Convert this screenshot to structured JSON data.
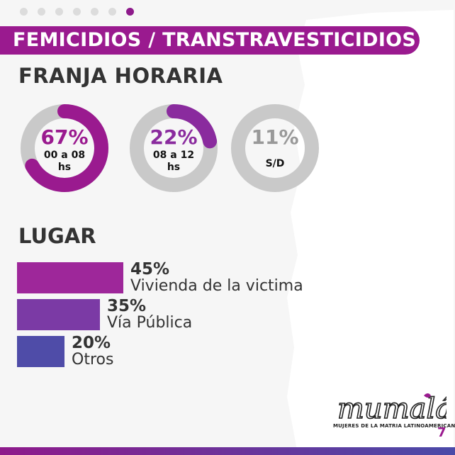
{
  "pagination": {
    "count": 7,
    "active_index": 6
  },
  "banner": {
    "title": "FEMICIDIOS / TRANSTRAVESTICIDIOS"
  },
  "franja": {
    "heading": "FRANJA HORARIA",
    "items": [
      {
        "percent_label": "67%",
        "value": 67,
        "label_lines": [
          "00 a 08",
          "hs"
        ],
        "color": "#9a1a8f"
      },
      {
        "percent_label": "22%",
        "value": 22,
        "label_lines": [
          "08 a 12",
          "hs"
        ],
        "color": "#8a2b9e"
      },
      {
        "percent_label": "11%",
        "value": 11,
        "label_lines": [
          "S/D"
        ],
        "color": "#bbbbbb"
      }
    ]
  },
  "lugar": {
    "heading": "LUGAR",
    "items": [
      {
        "percent_label": "45%",
        "value": 45,
        "name": "Vivienda de la victima",
        "color": "#9e279a"
      },
      {
        "percent_label": "35%",
        "value": 35,
        "name": "Vía Pública",
        "color": "#7b3aa5"
      },
      {
        "percent_label": "20%",
        "value": 20,
        "name": "Otros",
        "color": "#4f4ca8"
      }
    ]
  },
  "chart_data": [
    {
      "type": "pie",
      "title": "FRANJA HORARIA",
      "categories": [
        "00 a 08 hs",
        "08 a 12 hs",
        "S/D"
      ],
      "values": [
        67,
        22,
        11
      ]
    },
    {
      "type": "bar",
      "title": "LUGAR",
      "categories": [
        "Vivienda de la victima",
        "Vía Pública",
        "Otros"
      ],
      "values": [
        45,
        35,
        20
      ]
    }
  ],
  "logo": {
    "wordmark": "mumalá",
    "tagline": "MUJERES DE LA MATRIA LATINOAMERICANA"
  },
  "page_number": "7",
  "colors": {
    "accent": "#9a1a8f",
    "ring_track": "#c9c9c9",
    "text_dark": "#333333"
  }
}
